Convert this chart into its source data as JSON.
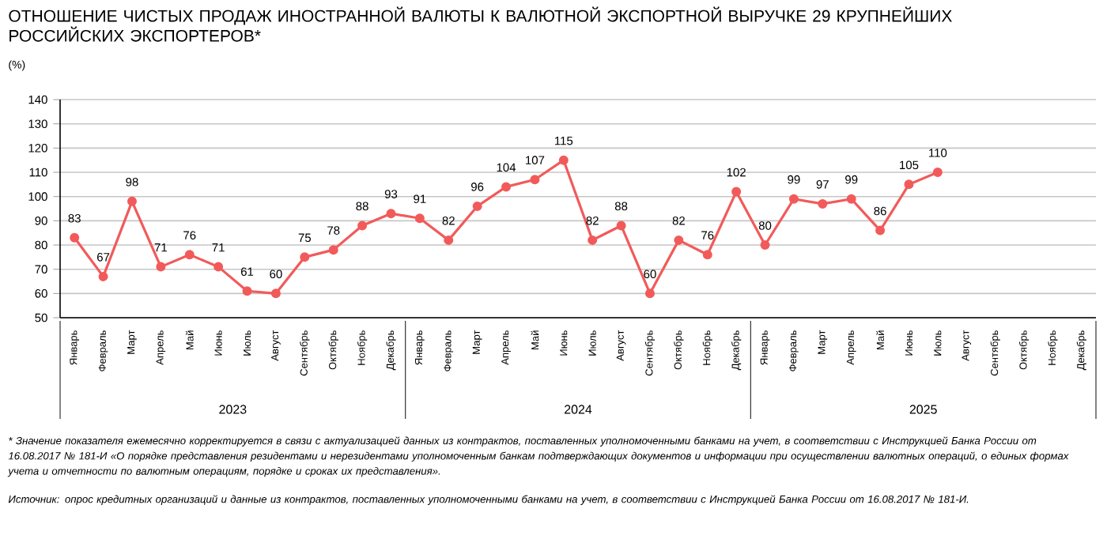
{
  "chart_data": {
    "type": "line",
    "title": "ОТНОШЕНИЕ ЧИСТЫХ ПРОДАЖ ИНОСТРАННОЙ ВАЛЮТЫ К ВАЛЮТНОЙ ЭКСПОРТНОЙ ВЫРУЧКЕ 29 КРУПНЕЙШИХ РОССИЙСКИХ ЭКСПОРТЕРОВ*",
    "ylabel": "(%)",
    "categories": [
      "Январь",
      "Февраль",
      "Март",
      "Апрель",
      "Май",
      "Июнь",
      "Июль",
      "Август",
      "Сентябрь",
      "Октябрь",
      "Ноябрь",
      "Декабрь",
      "Январь",
      "Февраль",
      "Март",
      "Апрель",
      "Май",
      "Июнь",
      "Июль",
      "Август",
      "Сентябрь",
      "Октябрь",
      "Ноябрь",
      "Декабрь",
      "Январь",
      "Февраль",
      "Март",
      "Апрель",
      "Май",
      "Июнь",
      "Июль",
      "Август",
      "Сентябрь",
      "Октябрь",
      "Ноябрь",
      "Декабрь"
    ],
    "series": [
      {
        "color": "#f25a5a",
        "values": [
          83,
          67,
          98,
          71,
          76,
          71,
          61,
          60,
          75,
          78,
          88,
          93,
          91,
          82,
          96,
          104,
          107,
          115,
          82,
          88,
          60,
          82,
          76,
          102,
          80,
          99,
          97,
          99,
          86,
          105,
          110,
          null,
          null,
          null,
          null,
          null
        ]
      }
    ],
    "ylim": [
      50,
      140
    ],
    "yticks": [
      50,
      60,
      70,
      80,
      90,
      100,
      110,
      120,
      130,
      140
    ],
    "grid": "y",
    "marker": "circle",
    "line_style": "solid",
    "data_labels": true,
    "annotations": [
      "2023",
      "2024",
      "2025",
      "*\tЗначение показателя ежемесячно корректируется в связи с актуализацией данных из контрактов, поставленных уполномоченными банками на учет, в соответствии с Инструкцией Банка России от 16.08.2017 № 181-И «О порядке представления резидентами и нерезидентами уполномоченным банкам подтверждающих документов и информации при осуществлении валютных операций, о единых формах учета и отчетности по валютным операциям, порядке и сроках их представления».",
      "Источник: опрос кредитных организаций и данные из контрактов, поставленных уполномоченными банками на учет, в соответствии с Инструкцией Банка России от 16.08.2017 № 181-И."
    ]
  }
}
